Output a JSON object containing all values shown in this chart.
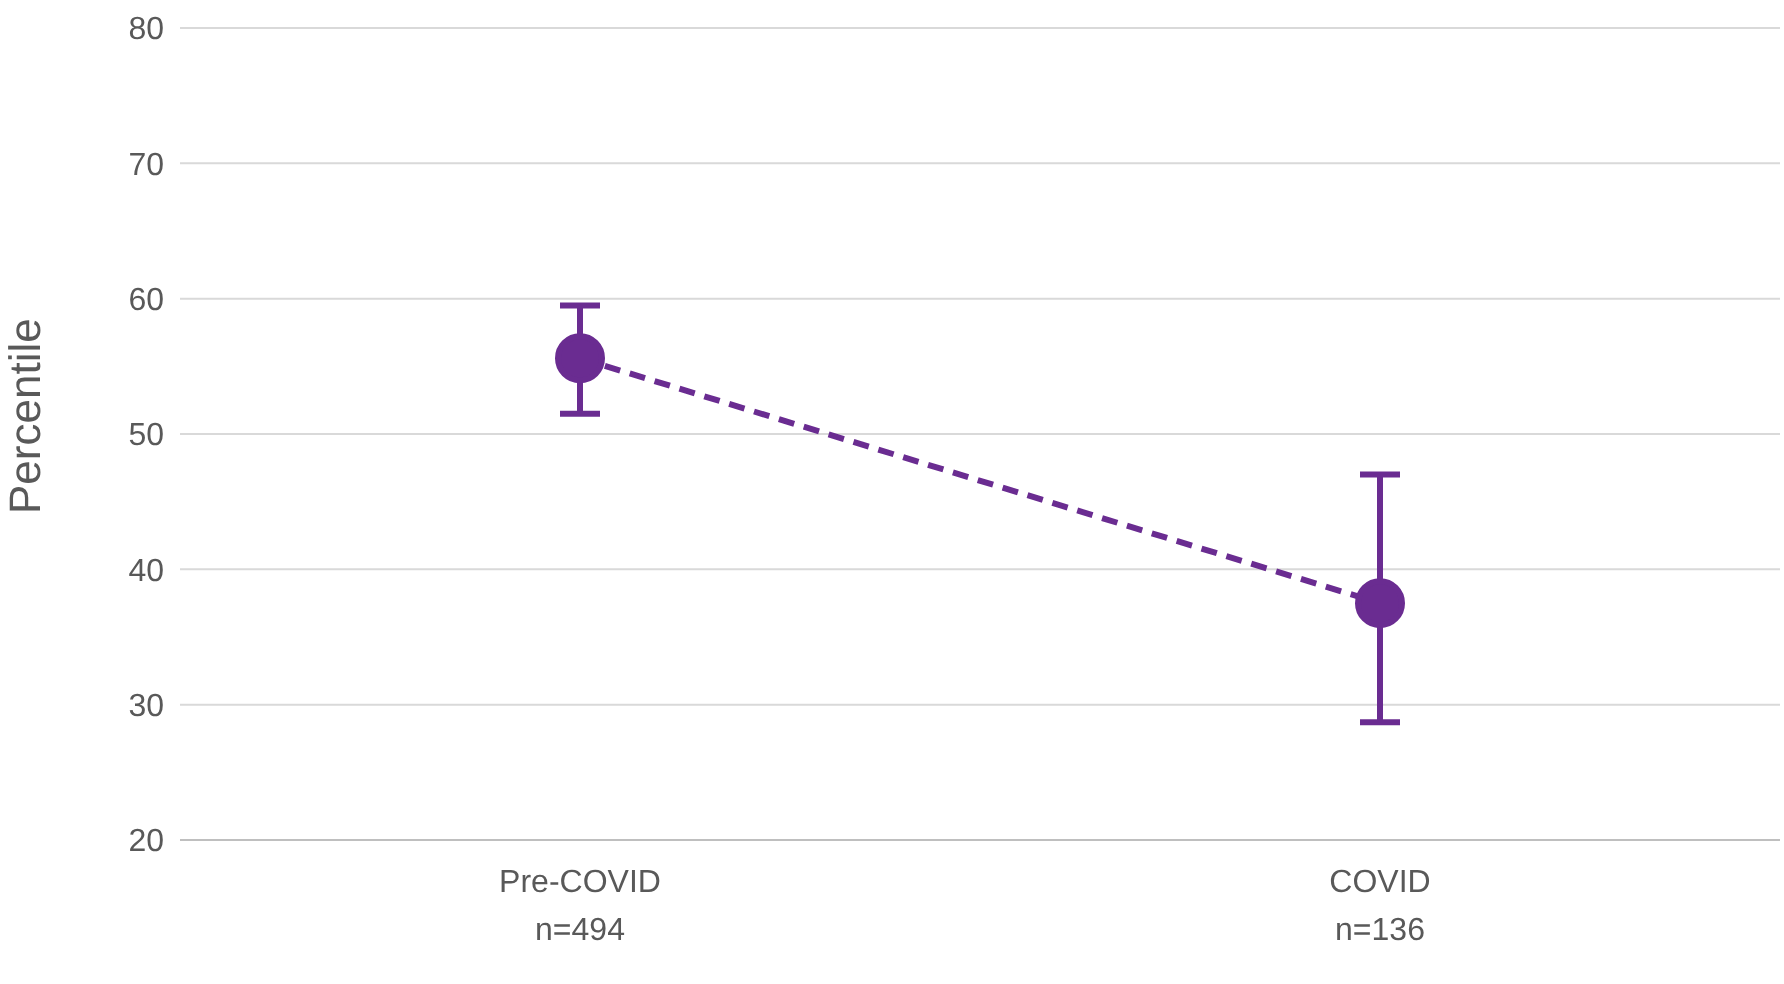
{
  "chart_data": {
    "type": "line",
    "ylabel": "Percentile",
    "categories": [
      "Pre-COVID\nn=494",
      "COVID\nn=136"
    ],
    "series": [
      {
        "color": "#6a2c91",
        "values": [
          55.6,
          37.5
        ],
        "errors": [
          [
            51.5,
            59.5
          ],
          [
            28.7,
            47
          ]
        ]
      }
    ],
    "ylim": [
      20,
      80
    ],
    "yticks": [
      20,
      30,
      40,
      50,
      60,
      70,
      80
    ],
    "grid": "y",
    "marker": "circle",
    "line_style": "dashed"
  }
}
